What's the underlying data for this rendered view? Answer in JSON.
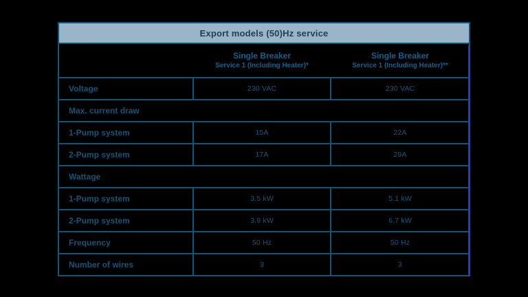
{
  "page": {
    "background_color": "#000000"
  },
  "table": {
    "title": "Export models (50)Hz service",
    "colors": {
      "band_background": "#9bb5c8",
      "band_text": "#1f3e52",
      "grid_border": "#0d5878",
      "cell_text": "#14587d",
      "right_accent": "#1b3fd6"
    },
    "columns": [
      {
        "line1": "Single Breaker",
        "line2": "Service 1 (Including Heater)*"
      },
      {
        "line1": "Single Breaker",
        "line2": "Service 1 (Including Heater)**"
      }
    ],
    "rows": [
      {
        "type": "data",
        "label": "Voltage",
        "col1": "230 VAC",
        "col2": "230 VAC"
      },
      {
        "type": "section",
        "label": "Max. current draw"
      },
      {
        "type": "data",
        "label": "1-Pump system",
        "col1": "15A",
        "col2": "22A"
      },
      {
        "type": "data",
        "label": "2-Pump system",
        "col1": "17A",
        "col2": "29A"
      },
      {
        "type": "section",
        "label": "Wattage"
      },
      {
        "type": "data",
        "label": "1-Pump system",
        "col1": "3.5 kW",
        "col2": "5.1 kW"
      },
      {
        "type": "data",
        "label": "2-Pump system",
        "col1": "3.9 kW",
        "col2": "6.7 kW"
      },
      {
        "type": "data",
        "label": "Frequency",
        "col1": "50 Hz",
        "col2": "50 Hz"
      },
      {
        "type": "data",
        "label": "Number of wires",
        "col1": "3",
        "col2": "3"
      }
    ]
  }
}
